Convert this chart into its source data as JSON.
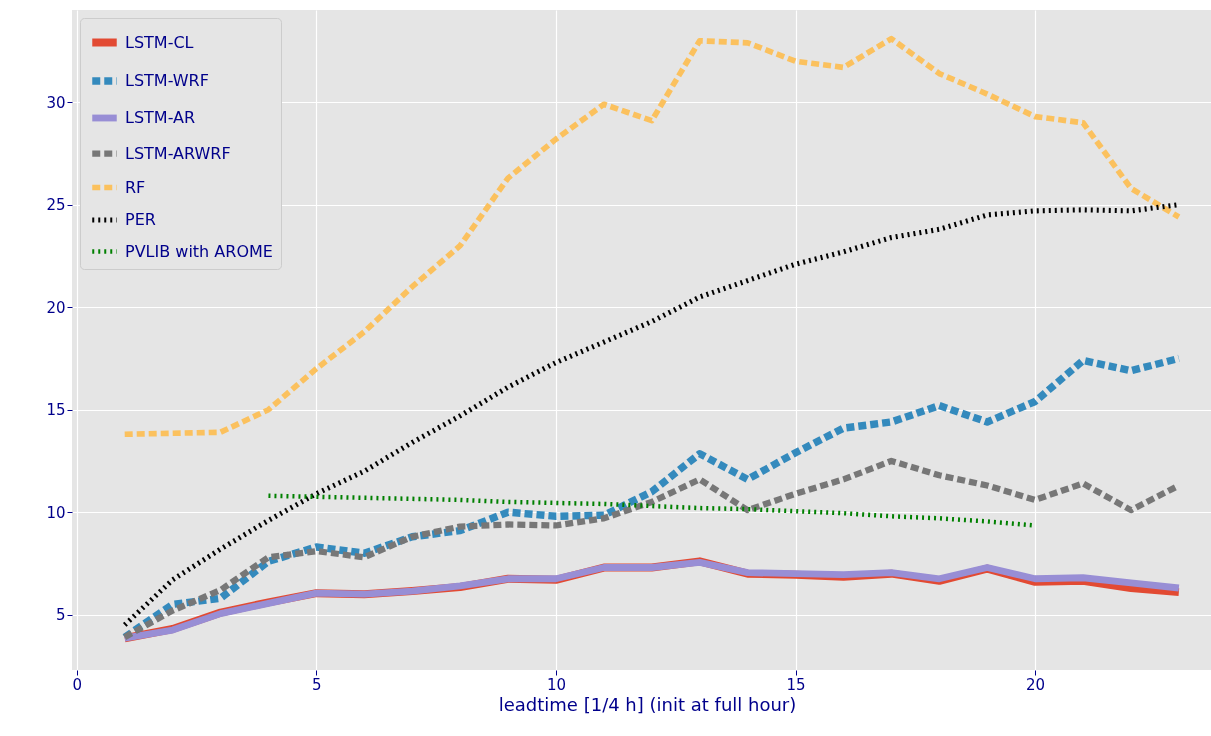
{
  "chart_data": {
    "type": "line",
    "xlabel": "leadtime [1/4 h] (init at full hour)",
    "x": [
      1,
      2,
      3,
      4,
      5,
      6,
      7,
      8,
      9,
      10,
      11,
      12,
      13,
      14,
      15,
      16,
      17,
      18,
      19,
      20,
      21,
      22,
      23
    ],
    "xlim": [
      -0.1,
      23.9
    ],
    "xticks": [
      0,
      5,
      10,
      15,
      20
    ],
    "ylim": [
      2.3,
      34.5
    ],
    "yticks": [
      5,
      10,
      15,
      20,
      25,
      30
    ],
    "grid": true,
    "legend": "top left",
    "series": [
      {
        "name": "LSTM-CL",
        "color": "#e24a33",
        "line_style": "solid",
        "values": [
          3.85,
          4.3,
          5.1,
          5.6,
          6.05,
          6.0,
          6.15,
          6.35,
          6.75,
          6.7,
          7.3,
          7.3,
          7.6,
          7.0,
          6.95,
          6.85,
          7.0,
          6.65,
          7.25,
          6.6,
          6.65,
          6.3,
          6.1
        ]
      },
      {
        "name": "LSTM-WRF",
        "color": "#348abd",
        "line_style": "dashed",
        "values": [
          3.9,
          5.5,
          5.8,
          7.6,
          8.3,
          8.0,
          8.8,
          9.1,
          10.0,
          9.8,
          9.85,
          11.0,
          12.85,
          11.6,
          12.9,
          14.1,
          14.4,
          15.2,
          14.4,
          15.4,
          17.4,
          16.9,
          17.5
        ]
      },
      {
        "name": "LSTM-AR",
        "color": "#988ed5",
        "line_style": "solid",
        "values": [
          3.85,
          4.25,
          5.05,
          5.55,
          6.05,
          6.0,
          6.15,
          6.4,
          6.75,
          6.75,
          7.3,
          7.3,
          7.55,
          7.05,
          7.0,
          6.95,
          7.05,
          6.75,
          7.3,
          6.75,
          6.8,
          6.55,
          6.3
        ]
      },
      {
        "name": "LSTM-ARWRF",
        "color": "#777777",
        "line_style": "dashed",
        "values": [
          3.9,
          5.2,
          6.2,
          7.8,
          8.1,
          7.8,
          8.8,
          9.3,
          9.4,
          9.35,
          9.7,
          10.5,
          11.6,
          10.1,
          10.9,
          11.6,
          12.5,
          11.8,
          11.3,
          10.6,
          11.4,
          10.1,
          11.3
        ]
      },
      {
        "name": "RF",
        "color": "#fbc15e",
        "line_style": "dashed",
        "values": [
          13.8,
          13.85,
          13.9,
          15.0,
          17.0,
          18.8,
          21.0,
          23.0,
          26.3,
          28.2,
          29.9,
          29.1,
          33.0,
          32.9,
          32.0,
          31.7,
          33.1,
          31.4,
          30.4,
          29.3,
          29.0,
          25.8,
          24.4
        ]
      },
      {
        "name": "PER",
        "color": "#000000",
        "line_style": "dotted",
        "values": [
          4.5,
          6.7,
          8.2,
          9.6,
          10.9,
          12.0,
          13.4,
          14.7,
          16.1,
          17.3,
          18.3,
          19.3,
          20.5,
          21.3,
          22.1,
          22.7,
          23.4,
          23.8,
          24.5,
          24.7,
          24.75,
          24.7,
          25.0
        ]
      },
      {
        "name": "PVLIB with AROME",
        "color": "#008000",
        "line_style": "dotted",
        "x": [
          4,
          5,
          6,
          7,
          8,
          9,
          10,
          11,
          12,
          13,
          14,
          15,
          16,
          17,
          18,
          19,
          20
        ],
        "values": [
          10.8,
          10.75,
          10.7,
          10.65,
          10.6,
          10.5,
          10.45,
          10.4,
          10.3,
          10.2,
          10.15,
          10.05,
          9.95,
          9.8,
          9.7,
          9.55,
          9.35
        ]
      }
    ]
  }
}
